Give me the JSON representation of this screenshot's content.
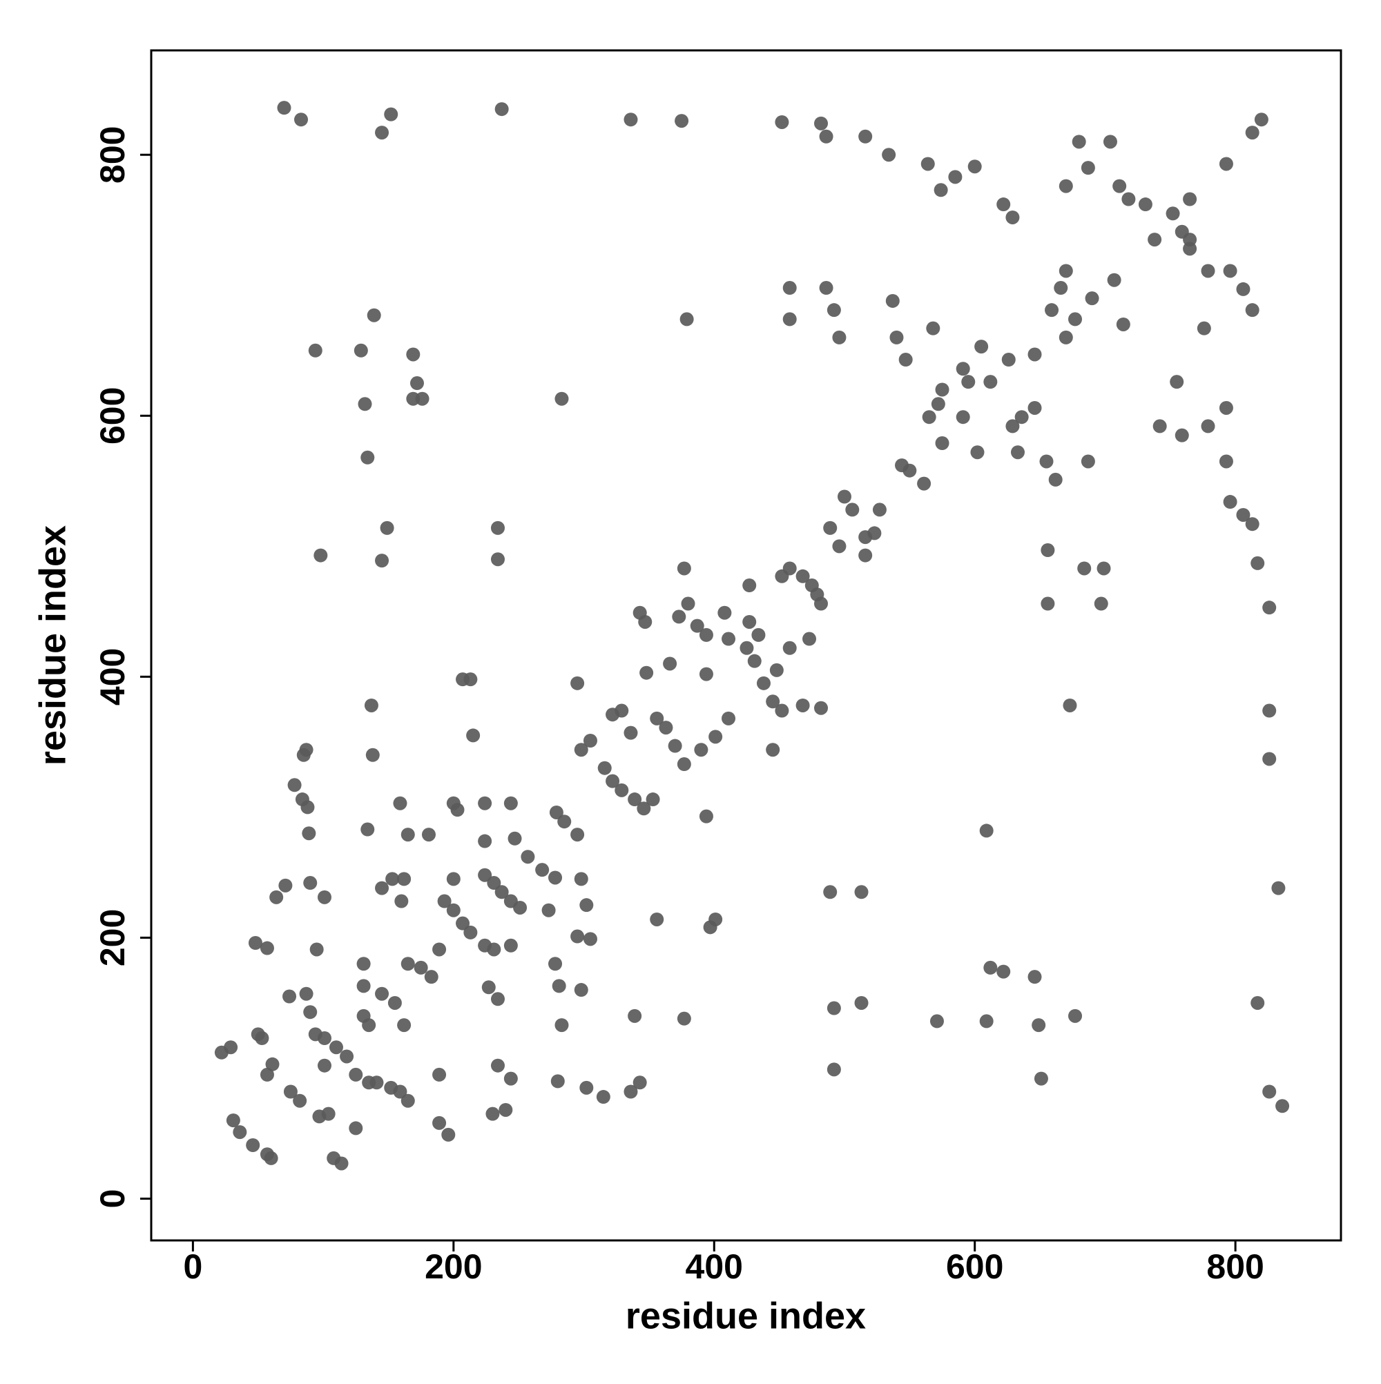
{
  "chart_data": {
    "type": "scatter",
    "x_label": "residue index",
    "y_label": "residue index",
    "xlim": [
      -32,
      881
    ],
    "ylim": [
      -32,
      880
    ],
    "xticks": [
      0,
      200,
      400,
      600,
      800
    ],
    "yticks": [
      0,
      200,
      400,
      600,
      800
    ],
    "color": "#5a5a5a",
    "x": [
      70,
      83,
      152,
      145,
      237,
      336,
      375,
      452,
      482,
      486,
      516,
      534,
      564,
      585,
      574,
      600,
      622,
      629,
      22,
      29,
      31,
      36,
      46,
      57,
      60,
      50,
      53,
      57,
      61,
      57,
      48,
      64,
      71,
      78,
      84,
      88,
      85,
      87,
      89,
      74,
      87,
      90,
      94,
      95,
      101,
      75,
      82,
      97,
      104,
      101,
      110,
      118,
      108,
      114,
      125,
      125,
      135,
      141,
      152,
      159,
      131,
      131,
      131,
      135,
      145,
      155,
      90,
      101,
      98,
      94,
      139,
      129,
      132,
      134,
      134,
      138,
      137,
      145,
      149,
      145,
      153,
      159,
      165,
      181,
      162,
      160,
      165,
      175,
      183,
      162,
      165,
      169,
      172,
      169,
      176,
      189,
      189,
      189,
      196,
      193,
      200,
      207,
      213,
      224,
      231,
      200,
      203,
      200,
      207,
      213,
      215,
      224,
      231,
      237,
      244,
      251,
      224,
      224,
      227,
      234,
      234,
      230,
      240,
      234,
      234,
      244,
      247,
      257,
      268,
      278,
      244,
      244,
      273,
      279,
      285,
      295,
      278,
      281,
      283,
      280,
      298,
      302,
      295,
      305,
      298,
      302,
      315,
      283,
      295,
      298,
      305,
      316,
      322,
      329,
      322,
      329,
      336,
      339,
      346,
      353,
      336,
      343,
      339,
      343,
      347,
      348,
      356,
      363,
      370,
      377,
      356,
      366,
      373,
      380,
      377,
      379,
      377,
      387,
      394,
      394,
      394,
      390,
      397,
      401,
      401,
      411,
      411,
      425,
      431,
      408,
      427,
      434,
      427,
      438,
      445,
      452,
      445,
      448,
      452,
      458,
      468,
      475,
      458,
      468,
      479,
      482,
      473,
      482,
      458,
      458,
      486,
      492,
      496,
      489,
      496,
      489,
      513,
      492,
      492,
      513,
      500,
      506,
      516,
      523,
      516,
      527,
      537,
      540,
      544,
      550,
      561,
      547,
      565,
      572,
      575,
      568,
      575,
      571,
      591,
      595,
      591,
      602,
      605,
      612,
      609,
      609,
      612,
      622,
      626,
      629,
      636,
      646,
      633,
      646,
      649,
      651,
      646,
      655,
      662,
      659,
      666,
      670,
      656,
      670,
      677,
      687,
      684,
      656,
      673,
      677,
      680,
      687,
      670,
      690,
      707,
      697,
      699,
      704,
      711,
      718,
      714,
      731,
      738,
      752,
      759,
      765,
      765,
      755,
      742,
      759,
      765,
      779,
      776,
      779,
      793,
      796,
      793,
      793,
      796,
      806,
      813,
      806,
      813,
      813,
      820,
      817,
      826,
      826,
      826,
      833,
      817,
      826,
      836
    ],
    "values": [
      836,
      827,
      831,
      817,
      835,
      827,
      826,
      825,
      824,
      814,
      814,
      800,
      793,
      783,
      773,
      791,
      762,
      752,
      112,
      116,
      60,
      51,
      41,
      34,
      31,
      126,
      123,
      95,
      103,
      192,
      196,
      231,
      240,
      317,
      306,
      300,
      340,
      344,
      280,
      155,
      157,
      143,
      126,
      191,
      123,
      82,
      75,
      63,
      65,
      102,
      116,
      109,
      31,
      27,
      54,
      95,
      89,
      89,
      85,
      82,
      180,
      163,
      140,
      133,
      157,
      150,
      242,
      231,
      493,
      650,
      677,
      650,
      609,
      568,
      283,
      340,
      378,
      489,
      514,
      238,
      245,
      303,
      279,
      279,
      245,
      228,
      180,
      177,
      170,
      133,
      75,
      647,
      625,
      613,
      613,
      191,
      95,
      58,
      49,
      228,
      221,
      211,
      204,
      194,
      191,
      303,
      298,
      245,
      398,
      398,
      355,
      248,
      242,
      235,
      228,
      223,
      303,
      274,
      162,
      153,
      102,
      65,
      68,
      514,
      490,
      194,
      276,
      262,
      252,
      246,
      303,
      92,
      221,
      296,
      289,
      279,
      180,
      163,
      133,
      90,
      245,
      225,
      201,
      199,
      160,
      85,
      78,
      613,
      395,
      344,
      351,
      330,
      320,
      313,
      371,
      374,
      357,
      306,
      299,
      306,
      82,
      89,
      140,
      449,
      442,
      403,
      368,
      361,
      347,
      333,
      214,
      410,
      446,
      456,
      483,
      674,
      138,
      439,
      432,
      402,
      293,
      344,
      208,
      214,
      354,
      368,
      429,
      422,
      412,
      449,
      442,
      432,
      470,
      395,
      381,
      374,
      344,
      405,
      477,
      483,
      477,
      470,
      422,
      378,
      463,
      456,
      429,
      376,
      698,
      674,
      698,
      681,
      660,
      514,
      500,
      235,
      235,
      146,
      99,
      150,
      538,
      528,
      507,
      510,
      493,
      528,
      688,
      660,
      562,
      558,
      548,
      643,
      599,
      609,
      620,
      667,
      579,
      136,
      636,
      626,
      599,
      572,
      653,
      626,
      282,
      136,
      177,
      174,
      643,
      592,
      599,
      606,
      572,
      170,
      133,
      92,
      647,
      565,
      551,
      681,
      698,
      711,
      497,
      660,
      674,
      565,
      483,
      456,
      378,
      140,
      810,
      790,
      776,
      690,
      704,
      456,
      483,
      810,
      776,
      766,
      670,
      762,
      735,
      755,
      741,
      735,
      766,
      626,
      592,
      585,
      728,
      711,
      667,
      592,
      793,
      711,
      606,
      565,
      534,
      524,
      517,
      697,
      681,
      817,
      827,
      487,
      453,
      374,
      337,
      238,
      150,
      82,
      71
    ]
  }
}
